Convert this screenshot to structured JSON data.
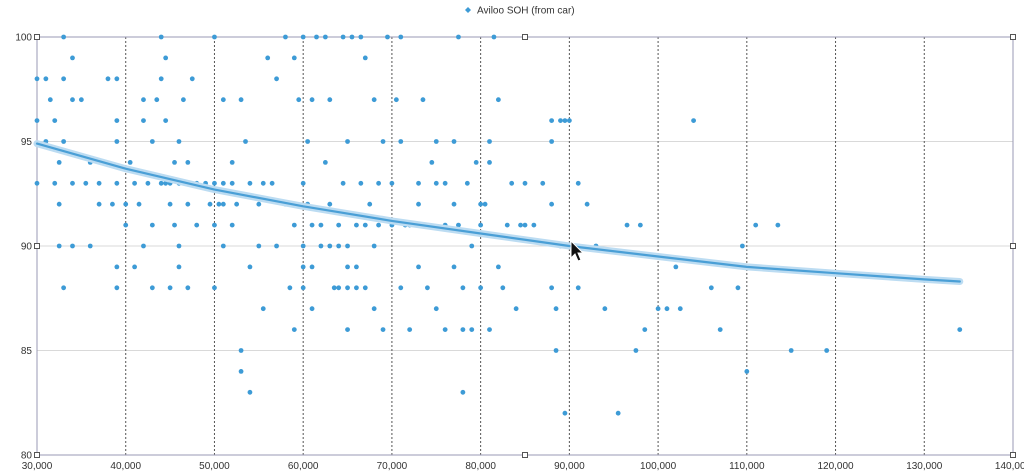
{
  "chart_data": {
    "type": "scatter",
    "title": "",
    "xlabel": "",
    "ylabel": "",
    "xlim": [
      30000,
      140000
    ],
    "ylim": [
      80,
      100
    ],
    "x_ticks": [
      30000,
      40000,
      50000,
      60000,
      70000,
      80000,
      90000,
      100000,
      110000,
      120000,
      130000,
      140000
    ],
    "x_tick_labels": [
      "30,000",
      "40,000",
      "50,000",
      "60,000",
      "70,000",
      "80,000",
      "90,000",
      "100,000",
      "110,000",
      "120,000",
      "130,000",
      "140,000"
    ],
    "y_ticks": [
      80,
      85,
      90,
      95,
      100
    ],
    "y_tick_labels": [
      "80",
      "85",
      "90",
      "95",
      "100"
    ],
    "grid": "on",
    "legend_position": "top-center",
    "point_color": "#3d9bd6",
    "trend_color": "#4a9fd6",
    "series": [
      {
        "name": "Aviloo SOH (from car)",
        "points": [
          [
            30000,
            98
          ],
          [
            30000,
            96
          ],
          [
            30000,
            93
          ],
          [
            31000,
            98
          ],
          [
            31000,
            95
          ],
          [
            31500,
            97
          ],
          [
            32000,
            93
          ],
          [
            32000,
            96
          ],
          [
            32500,
            94
          ],
          [
            32500,
            92
          ],
          [
            32500,
            90
          ],
          [
            33000,
            100
          ],
          [
            33000,
            98
          ],
          [
            33000,
            95
          ],
          [
            33000,
            88
          ],
          [
            34000,
            97
          ],
          [
            34000,
            93
          ],
          [
            34000,
            90
          ],
          [
            34000,
            99
          ],
          [
            35000,
            97
          ],
          [
            35500,
            93
          ],
          [
            36000,
            94
          ],
          [
            36000,
            90
          ],
          [
            37000,
            92
          ],
          [
            37000,
            93
          ],
          [
            37500,
            94
          ],
          [
            38000,
            98
          ],
          [
            38500,
            92
          ],
          [
            39000,
            96
          ],
          [
            39000,
            98
          ],
          [
            39000,
            95
          ],
          [
            39000,
            93
          ],
          [
            39000,
            89
          ],
          [
            39000,
            88
          ],
          [
            40000,
            92
          ],
          [
            40000,
            91
          ],
          [
            40500,
            94
          ],
          [
            41000,
            93
          ],
          [
            41000,
            89
          ],
          [
            41500,
            92
          ],
          [
            42000,
            97
          ],
          [
            42000,
            96
          ],
          [
            42000,
            90
          ],
          [
            42500,
            93
          ],
          [
            43000,
            95
          ],
          [
            43000,
            91
          ],
          [
            43000,
            88
          ],
          [
            43500,
            97
          ],
          [
            44000,
            93
          ],
          [
            44000,
            100
          ],
          [
            44000,
            98
          ],
          [
            44500,
            99
          ],
          [
            44500,
            96
          ],
          [
            44500,
            93
          ],
          [
            45000,
            93
          ],
          [
            45000,
            92
          ],
          [
            45000,
            88
          ],
          [
            45500,
            94
          ],
          [
            45500,
            91
          ],
          [
            46000,
            95
          ],
          [
            46000,
            93
          ],
          [
            46000,
            90
          ],
          [
            46000,
            89
          ],
          [
            46500,
            97
          ],
          [
            47000,
            94
          ],
          [
            47000,
            92
          ],
          [
            47000,
            88
          ],
          [
            47500,
            98
          ],
          [
            48000,
            93
          ],
          [
            48000,
            91
          ],
          [
            49000,
            93
          ],
          [
            49500,
            92
          ],
          [
            50000,
            100
          ],
          [
            50000,
            93
          ],
          [
            50000,
            91
          ],
          [
            50000,
            88
          ],
          [
            50500,
            92
          ],
          [
            51000,
            97
          ],
          [
            51000,
            93
          ],
          [
            51000,
            92
          ],
          [
            51000,
            90
          ],
          [
            52000,
            94
          ],
          [
            52000,
            93
          ],
          [
            52000,
            91
          ],
          [
            52500,
            92
          ],
          [
            53000,
            97
          ],
          [
            53000,
            85
          ],
          [
            53000,
            84
          ],
          [
            53500,
            95
          ],
          [
            54000,
            83
          ],
          [
            54000,
            93
          ],
          [
            54000,
            89
          ],
          [
            55000,
            92
          ],
          [
            55000,
            90
          ],
          [
            55500,
            93
          ],
          [
            55500,
            87
          ],
          [
            56000,
            99
          ],
          [
            56500,
            93
          ],
          [
            57000,
            98
          ],
          [
            57000,
            90
          ],
          [
            58000,
            100
          ],
          [
            58000,
            92
          ],
          [
            58500,
            88
          ],
          [
            59000,
            99
          ],
          [
            59000,
            91
          ],
          [
            59000,
            86
          ],
          [
            59500,
            97
          ],
          [
            60000,
            100
          ],
          [
            60000,
            93
          ],
          [
            60000,
            90
          ],
          [
            60000,
            89
          ],
          [
            60000,
            88
          ],
          [
            60500,
            95
          ],
          [
            60500,
            92
          ],
          [
            61000,
            97
          ],
          [
            61000,
            91
          ],
          [
            61000,
            89
          ],
          [
            61000,
            87
          ],
          [
            61500,
            100
          ],
          [
            62000,
            91
          ],
          [
            62000,
            90
          ],
          [
            62500,
            100
          ],
          [
            62500,
            94
          ],
          [
            63000,
            97
          ],
          [
            63000,
            92
          ],
          [
            63000,
            90
          ],
          [
            63500,
            88
          ],
          [
            64000,
            91
          ],
          [
            64000,
            90
          ],
          [
            64000,
            88
          ],
          [
            64500,
            100
          ],
          [
            64500,
            93
          ],
          [
            65000,
            95
          ],
          [
            65000,
            90
          ],
          [
            65000,
            89
          ],
          [
            65000,
            88
          ],
          [
            65000,
            86
          ],
          [
            65500,
            100
          ],
          [
            66000,
            91
          ],
          [
            66000,
            89
          ],
          [
            66000,
            88
          ],
          [
            66500,
            100
          ],
          [
            66500,
            93
          ],
          [
            67000,
            99
          ],
          [
            67000,
            91
          ],
          [
            67000,
            88
          ],
          [
            67500,
            92
          ],
          [
            68000,
            97
          ],
          [
            68000,
            90
          ],
          [
            68000,
            87
          ],
          [
            68500,
            93
          ],
          [
            68500,
            91
          ],
          [
            69000,
            95
          ],
          [
            69000,
            86
          ],
          [
            69500,
            100
          ],
          [
            70000,
            93
          ],
          [
            70000,
            91
          ],
          [
            70500,
            97
          ],
          [
            71000,
            100
          ],
          [
            71000,
            95
          ],
          [
            71000,
            88
          ],
          [
            71500,
            91
          ],
          [
            72000,
            86
          ],
          [
            72000,
            91
          ],
          [
            73000,
            93
          ],
          [
            73000,
            92
          ],
          [
            73000,
            89
          ],
          [
            73500,
            97
          ],
          [
            74000,
            91
          ],
          [
            74000,
            88
          ],
          [
            74500,
            94
          ],
          [
            75000,
            95
          ],
          [
            75000,
            93
          ],
          [
            75000,
            87
          ],
          [
            76000,
            93
          ],
          [
            76000,
            91
          ],
          [
            76000,
            86
          ],
          [
            77000,
            95
          ],
          [
            77000,
            92
          ],
          [
            77000,
            89
          ],
          [
            77500,
            100
          ],
          [
            77500,
            91
          ],
          [
            78000,
            88
          ],
          [
            78000,
            86
          ],
          [
            78000,
            83
          ],
          [
            78500,
            93
          ],
          [
            79000,
            90
          ],
          [
            79000,
            86
          ],
          [
            79500,
            94
          ],
          [
            80000,
            92
          ],
          [
            80000,
            91
          ],
          [
            80000,
            88
          ],
          [
            80500,
            92
          ],
          [
            81000,
            95
          ],
          [
            81000,
            94
          ],
          [
            81000,
            86
          ],
          [
            81500,
            100
          ],
          [
            82000,
            97
          ],
          [
            82000,
            89
          ],
          [
            82500,
            88
          ],
          [
            83000,
            91
          ],
          [
            83500,
            93
          ],
          [
            84000,
            87
          ],
          [
            84500,
            91
          ],
          [
            85000,
            93
          ],
          [
            85000,
            91
          ],
          [
            86000,
            91
          ],
          [
            87000,
            93
          ],
          [
            88000,
            96
          ],
          [
            88000,
            95
          ],
          [
            88000,
            92
          ],
          [
            88000,
            88
          ],
          [
            88500,
            87
          ],
          [
            88500,
            85
          ],
          [
            89000,
            96
          ],
          [
            89000,
            90
          ],
          [
            89500,
            96
          ],
          [
            89500,
            82
          ],
          [
            90000,
            96
          ],
          [
            90000,
            90
          ],
          [
            91000,
            93
          ],
          [
            91000,
            88
          ],
          [
            92000,
            92
          ],
          [
            93000,
            90
          ],
          [
            94000,
            87
          ],
          [
            95500,
            82
          ],
          [
            96500,
            91
          ],
          [
            97500,
            85
          ],
          [
            98000,
            91
          ],
          [
            98500,
            86
          ],
          [
            100000,
            87
          ],
          [
            101000,
            87
          ],
          [
            102000,
            89
          ],
          [
            102500,
            87
          ],
          [
            104000,
            96
          ],
          [
            106000,
            88
          ],
          [
            107000,
            86
          ],
          [
            109000,
            88
          ],
          [
            109500,
            90
          ],
          [
            110000,
            84
          ],
          [
            111000,
            91
          ],
          [
            113500,
            91
          ],
          [
            115000,
            85
          ],
          [
            119000,
            85
          ],
          [
            134000,
            86
          ]
        ]
      }
    ],
    "trendline": {
      "type": "logarithmic",
      "x": [
        30000,
        40000,
        50000,
        60000,
        70000,
        80000,
        90000,
        100000,
        110000,
        120000,
        130000,
        134000
      ],
      "y": [
        94.9,
        93.7,
        92.7,
        91.9,
        91.2,
        90.6,
        90.0,
        89.5,
        89.0,
        88.7,
        88.4,
        88.3
      ]
    }
  }
}
